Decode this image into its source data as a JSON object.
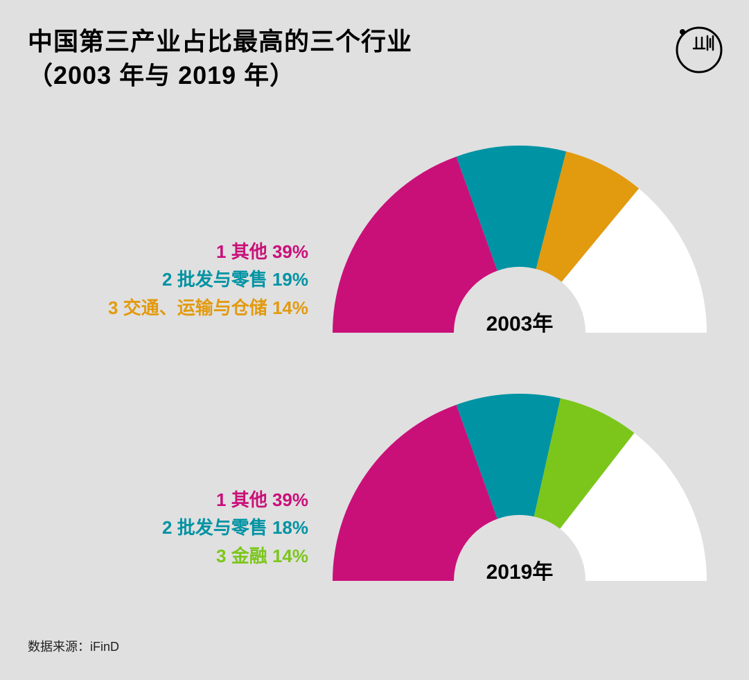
{
  "title_line1": "中国第三产业占比最高的三个行业",
  "title_line2": "（2003 年与 2019 年）",
  "title_fontsize": 36,
  "title_color": "#000000",
  "background_color": "#e0e0e0",
  "source_label": "数据来源：iFinD",
  "source_fontsize": 18,
  "logo": {
    "circle_stroke": "#000000",
    "circle_stroke_width": 3
  },
  "charts": [
    {
      "year_label": "2003年",
      "outer_radius": 270,
      "inner_radius": 95,
      "slices": [
        {
          "label": "其他",
          "value": 39,
          "color": "#c91079"
        },
        {
          "label": "批发与零售",
          "value": 19,
          "color": "#0093a3"
        },
        {
          "label": "交通、运输与仓储",
          "value": 14,
          "color": "#e29a0e"
        },
        {
          "label": "",
          "value": 28,
          "color": "#ffffff"
        }
      ],
      "legend": [
        {
          "rank": "1",
          "label": "其他",
          "pct": "39%",
          "color": "#c91079"
        },
        {
          "rank": "2",
          "label": "批发与零售",
          "pct": "19%",
          "color": "#0093a3"
        },
        {
          "rank": "3",
          "label": "交通、运输与仓储",
          "pct": "14%",
          "color": "#e29a0e"
        }
      ]
    },
    {
      "year_label": "2019年",
      "outer_radius": 270,
      "inner_radius": 95,
      "slices": [
        {
          "label": "其他",
          "value": 39,
          "color": "#c91079"
        },
        {
          "label": "批发与零售",
          "value": 18,
          "color": "#0093a3"
        },
        {
          "label": "金融",
          "value": 14,
          "color": "#7cc61b"
        },
        {
          "label": "",
          "value": 29,
          "color": "#ffffff"
        }
      ],
      "legend": [
        {
          "rank": "1",
          "label": "其他",
          "pct": "39%",
          "color": "#c91079"
        },
        {
          "rank": "2",
          "label": "批发与零售",
          "pct": "18%",
          "color": "#0093a3"
        },
        {
          "rank": "3",
          "label": "金融",
          "pct": "14%",
          "color": "#7cc61b"
        }
      ]
    }
  ],
  "legend_fontsize": 26,
  "year_label_fontsize": 30
}
